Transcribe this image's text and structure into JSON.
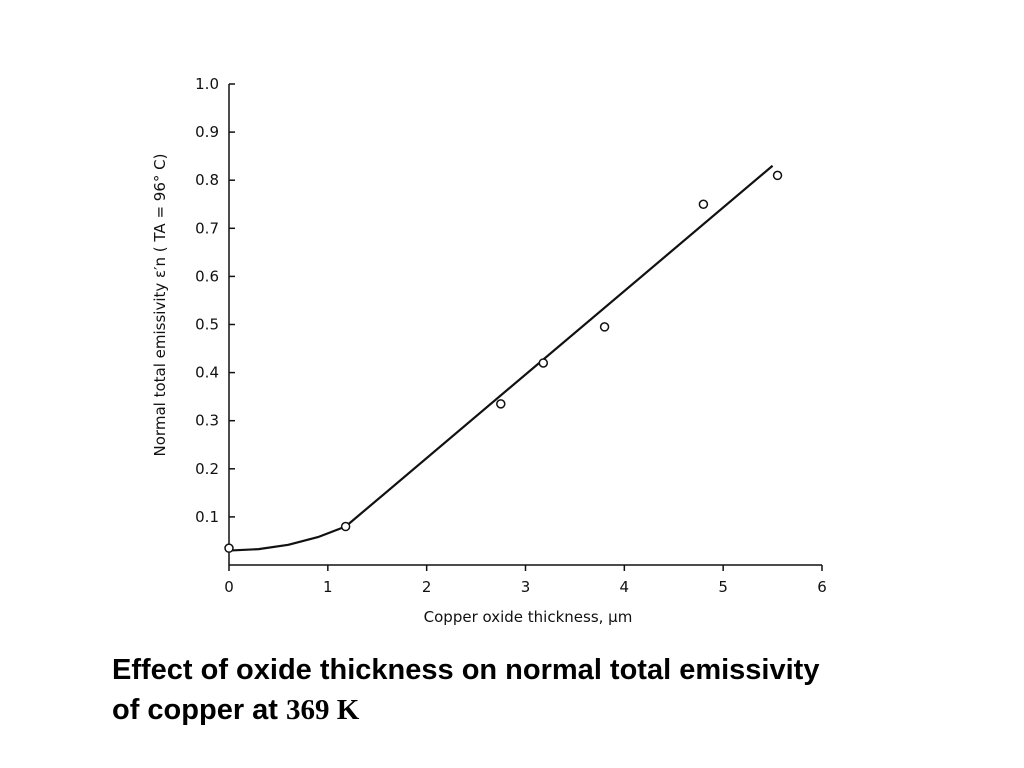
{
  "chart_data": {
    "type": "scatter",
    "xlabel": "Copper oxide thickness, μm",
    "ylabel": "Normal total emissivity ε′n ( TA = 96° C)",
    "xlim": [
      0,
      6
    ],
    "ylim": [
      0,
      1.0
    ],
    "x_ticks": [
      "0",
      "1",
      "2",
      "3",
      "4",
      "5",
      "6"
    ],
    "y_ticks": [
      "0.1",
      "0.2",
      "0.3",
      "0.4",
      "0.5",
      "0.6",
      "0.7",
      "0.8",
      "0.9",
      "1.0"
    ],
    "points": [
      {
        "x": 0.0,
        "y": 0.035
      },
      {
        "x": 1.18,
        "y": 0.08
      },
      {
        "x": 2.75,
        "y": 0.335
      },
      {
        "x": 3.18,
        "y": 0.42
      },
      {
        "x": 3.8,
        "y": 0.495
      },
      {
        "x": 4.8,
        "y": 0.75
      },
      {
        "x": 5.55,
        "y": 0.81
      }
    ],
    "fit_curve": [
      {
        "x": 0.0,
        "y": 0.03
      },
      {
        "x": 0.3,
        "y": 0.033
      },
      {
        "x": 0.6,
        "y": 0.042
      },
      {
        "x": 0.9,
        "y": 0.058
      },
      {
        "x": 1.18,
        "y": 0.08
      },
      {
        "x": 5.5,
        "y": 0.83
      }
    ],
    "grid": false,
    "legend": "none"
  },
  "caption": {
    "line1": "Effect of oxide thickness on normal total emissivity",
    "line2_prefix": "of copper at ",
    "line2_value": "369 K"
  }
}
